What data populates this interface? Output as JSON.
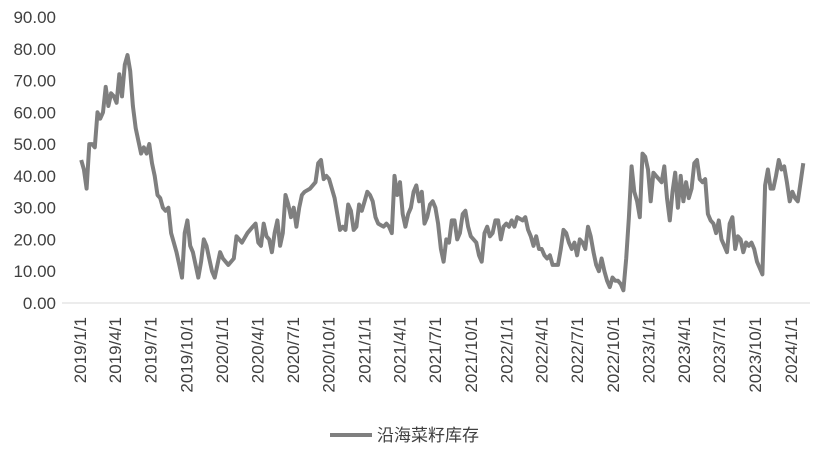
{
  "chart_data": {
    "type": "line",
    "x": [
      "2019/1/4",
      "2019/1/11",
      "2019/1/18",
      "2019/1/25",
      "2019/2/1",
      "2019/2/8",
      "2019/2/15",
      "2019/2/22",
      "2019/3/1",
      "2019/3/8",
      "2019/3/15",
      "2019/3/22",
      "2019/3/29",
      "2019/4/5",
      "2019/4/12",
      "2019/4/19",
      "2019/4/26",
      "2019/5/3",
      "2019/5/10",
      "2019/5/17",
      "2019/5/24",
      "2019/5/31",
      "2019/6/7",
      "2019/6/14",
      "2019/6/21",
      "2019/6/28",
      "2019/7/5",
      "2019/7/12",
      "2019/7/19",
      "2019/7/26",
      "2019/8/2",
      "2019/8/9",
      "2019/8/16",
      "2019/8/23",
      "2019/8/30",
      "2019/9/6",
      "2019/9/13",
      "2019/9/20",
      "2019/9/27",
      "2019/10/4",
      "2019/10/11",
      "2019/10/18",
      "2019/10/25",
      "2019/11/1",
      "2019/11/8",
      "2019/11/15",
      "2019/11/22",
      "2019/11/29",
      "2019/12/6",
      "2019/12/13",
      "2019/12/20",
      "2019/12/27",
      "2020/1/3",
      "2020/1/17",
      "2020/1/31",
      "2020/2/7",
      "2020/2/21",
      "2020/3/6",
      "2020/3/20",
      "2020/3/27",
      "2020/4/3",
      "2020/4/10",
      "2020/4/17",
      "2020/4/24",
      "2020/5/1",
      "2020/5/8",
      "2020/5/15",
      "2020/5/22",
      "2020/5/29",
      "2020/6/5",
      "2020/6/12",
      "2020/6/19",
      "2020/6/26",
      "2020/7/3",
      "2020/7/10",
      "2020/7/17",
      "2020/7/24",
      "2020/7/31",
      "2020/8/14",
      "2020/8/28",
      "2020/9/4",
      "2020/9/11",
      "2020/9/18",
      "2020/9/25",
      "2020/10/2",
      "2020/10/16",
      "2020/10/23",
      "2020/10/30",
      "2020/11/6",
      "2020/11/13",
      "2020/11/20",
      "2020/11/27",
      "2020/12/4",
      "2020/12/11",
      "2020/12/18",
      "2020/12/25",
      "2021/1/1",
      "2021/1/8",
      "2021/1/15",
      "2021/1/22",
      "2021/1/29",
      "2021/2/5",
      "2021/2/19",
      "2021/2/26",
      "2021/3/5",
      "2021/3/12",
      "2021/3/19",
      "2021/3/26",
      "2021/4/2",
      "2021/4/9",
      "2021/4/16",
      "2021/4/23",
      "2021/4/30",
      "2021/5/7",
      "2021/5/14",
      "2021/5/21",
      "2021/5/28",
      "2021/6/4",
      "2021/6/11",
      "2021/6/18",
      "2021/6/25",
      "2021/7/2",
      "2021/7/9",
      "2021/7/16",
      "2021/7/23",
      "2021/7/30",
      "2021/8/6",
      "2021/8/13",
      "2021/8/20",
      "2021/8/27",
      "2021/9/3",
      "2021/9/10",
      "2021/9/17",
      "2021/9/24",
      "2021/10/1",
      "2021/10/15",
      "2021/10/22",
      "2021/10/29",
      "2021/11/5",
      "2021/11/12",
      "2021/11/19",
      "2021/11/26",
      "2021/12/3",
      "2021/12/10",
      "2021/12/17",
      "2021/12/24",
      "2021/12/31",
      "2022/1/7",
      "2022/1/14",
      "2022/1/21",
      "2022/1/28",
      "2022/2/11",
      "2022/2/18",
      "2022/2/25",
      "2022/3/4",
      "2022/3/11",
      "2022/3/18",
      "2022/3/25",
      "2022/4/1",
      "2022/4/8",
      "2022/4/15",
      "2022/4/22",
      "2022/4/29",
      "2022/5/13",
      "2022/5/20",
      "2022/5/27",
      "2022/6/3",
      "2022/6/10",
      "2022/6/17",
      "2022/6/24",
      "2022/7/1",
      "2022/7/8",
      "2022/7/15",
      "2022/7/22",
      "2022/7/29",
      "2022/8/5",
      "2022/8/12",
      "2022/8/19",
      "2022/8/26",
      "2022/9/2",
      "2022/9/9",
      "2022/9/16",
      "2022/9/23",
      "2022/9/30",
      "2022/10/7",
      "2022/10/14",
      "2022/10/21",
      "2022/10/28",
      "2022/11/4",
      "2022/11/11",
      "2022/11/18",
      "2022/11/25",
      "2022/12/2",
      "2022/12/9",
      "2022/12/16",
      "2022/12/23",
      "2022/12/30",
      "2023/1/6",
      "2023/1/13",
      "2023/1/20",
      "2023/1/27",
      "2023/2/3",
      "2023/2/10",
      "2023/2/17",
      "2023/2/24",
      "2023/3/3",
      "2023/3/10",
      "2023/3/17",
      "2023/3/24",
      "2023/3/31",
      "2023/4/7",
      "2023/4/14",
      "2023/4/21",
      "2023/4/28",
      "2023/5/5",
      "2023/5/12",
      "2023/5/19",
      "2023/5/26",
      "2023/6/2",
      "2023/6/9",
      "2023/6/16",
      "2023/6/23",
      "2023/6/30",
      "2023/7/7",
      "2023/7/14",
      "2023/7/21",
      "2023/7/28",
      "2023/8/4",
      "2023/8/11",
      "2023/8/18",
      "2023/8/25",
      "2023/9/1",
      "2023/9/8",
      "2023/9/15",
      "2023/9/22",
      "2023/9/29",
      "2023/10/6",
      "2023/10/13",
      "2023/10/20",
      "2023/10/27",
      "2023/11/3",
      "2023/11/10",
      "2023/11/17",
      "2023/11/24",
      "2023/12/1",
      "2023/12/8",
      "2023/12/15",
      "2023/12/22",
      "2023/12/29",
      "2024/1/5",
      "2024/1/12",
      "2024/1/19",
      "2024/1/26",
      "2024/2/2"
    ],
    "series": [
      {
        "name": "沿海菜籽库存",
        "color": "#7f7f7f",
        "values": [
          45,
          42,
          36,
          50,
          50,
          49,
          60,
          58,
          60,
          68,
          62,
          66,
          65,
          63,
          72,
          65,
          75,
          78,
          73,
          62,
          55,
          51,
          47,
          49,
          47,
          50,
          44,
          40,
          34,
          33,
          30,
          29,
          30,
          22,
          19,
          16,
          12,
          8,
          22,
          26,
          18,
          16,
          12,
          8,
          13,
          20,
          18,
          14,
          10,
          8,
          12,
          16,
          14,
          12,
          14,
          21,
          19,
          22,
          24,
          25,
          19,
          18,
          25,
          21,
          20,
          16,
          22,
          26,
          18,
          22,
          34,
          31,
          27,
          30,
          24,
          30,
          34,
          35,
          36,
          38,
          44,
          45,
          39,
          40,
          39,
          33,
          28,
          23,
          24,
          23,
          31,
          29,
          23,
          24,
          31,
          29,
          32,
          35,
          34,
          32,
          27,
          25,
          24,
          25,
          24,
          22,
          40,
          34,
          38,
          28,
          24,
          28,
          30,
          35,
          37,
          32,
          35,
          25,
          27,
          31,
          32,
          30,
          25,
          17,
          13,
          20,
          19,
          26,
          26,
          20,
          22,
          28,
          29,
          24,
          21,
          19,
          15,
          13,
          22,
          24,
          21,
          22,
          26,
          26,
          20,
          24,
          25,
          24,
          26,
          24,
          27,
          26,
          27,
          23,
          21,
          18,
          21,
          17,
          17,
          15,
          14,
          15,
          12,
          12,
          17,
          23,
          22,
          19,
          17,
          19,
          15,
          20,
          19,
          17,
          24,
          21,
          16,
          12,
          10,
          14,
          10,
          7,
          5,
          8,
          7,
          7,
          6,
          4,
          14,
          27,
          43,
          35,
          32,
          27,
          47,
          46,
          42,
          32,
          41,
          40,
          39,
          38,
          43,
          33,
          26,
          35,
          41,
          30,
          40,
          32,
          38,
          33,
          36,
          44,
          45,
          39,
          38,
          39,
          28,
          26,
          25,
          22,
          26,
          20,
          18,
          16,
          25,
          27,
          17,
          21,
          20,
          16,
          19,
          18,
          19,
          17,
          13,
          11,
          9,
          37,
          42,
          36,
          36,
          40,
          45,
          42,
          43,
          38,
          32,
          35,
          33,
          32,
          38,
          44
        ]
      }
    ],
    "xlim": [
      "2019/1/1",
      "2024/2/9"
    ],
    "xticks": [
      "2019/1/1",
      "2019/4/1",
      "2019/7/1",
      "2019/10/1",
      "2020/1/1",
      "2020/4/1",
      "2020/7/1",
      "2020/10/1",
      "2021/1/1",
      "2021/4/1",
      "2021/7/1",
      "2021/10/1",
      "2022/1/1",
      "2022/4/1",
      "2022/7/1",
      "2022/10/1",
      "2023/1/1",
      "2023/4/1",
      "2023/7/1",
      "2023/10/1",
      "2024/1/1"
    ],
    "ylim": [
      0,
      90
    ],
    "yticks": [
      {
        "value": 0,
        "label": "0.00"
      },
      {
        "value": 10,
        "label": "10.00"
      },
      {
        "value": 20,
        "label": "20.00"
      },
      {
        "value": 30,
        "label": "30.00"
      },
      {
        "value": 40,
        "label": "40.00"
      },
      {
        "value": 50,
        "label": "50.00"
      },
      {
        "value": 60,
        "label": "60.00"
      },
      {
        "value": 70,
        "label": "70.00"
      },
      {
        "value": 80,
        "label": "80.00"
      },
      {
        "value": 90,
        "label": "90.00"
      }
    ],
    "grid": false,
    "legend": "bottom"
  }
}
